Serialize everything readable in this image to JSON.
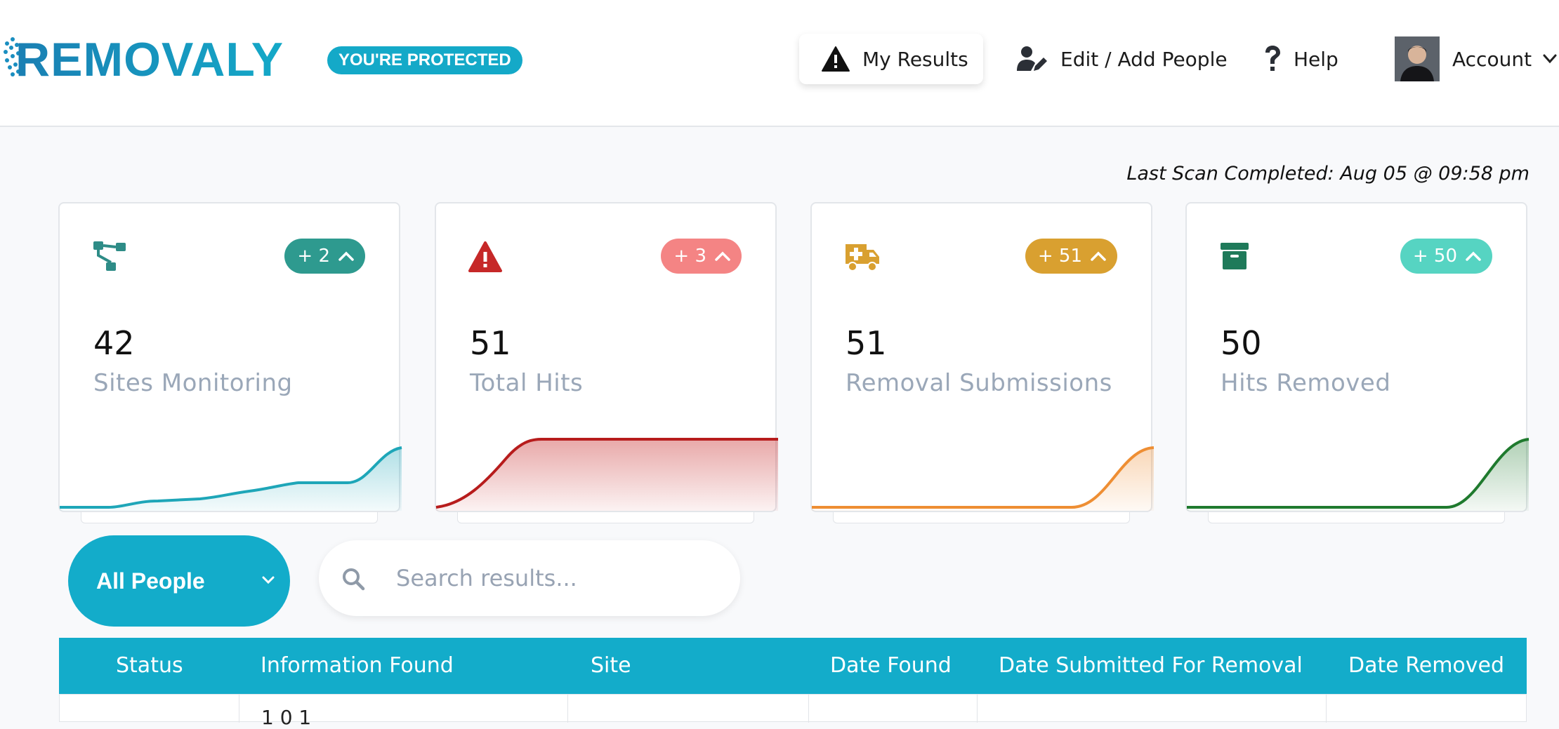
{
  "header": {
    "logo_text": "REMOVALY",
    "badge": "YOU'RE PROTECTED",
    "nav": [
      {
        "label": "My Results",
        "icon": "warning-icon",
        "active": true
      },
      {
        "label": "Edit / Add People",
        "icon": "user-edit-icon"
      },
      {
        "label": "Help",
        "icon": "question-icon"
      },
      {
        "label": "Account",
        "icon": "avatar"
      }
    ]
  },
  "last_scan": "Last Scan Completed: Aug 05 @ 09:58 pm",
  "cards": [
    {
      "icon": "sitemap-icon",
      "change": "+ 2",
      "value": "42",
      "label": "Sites Monitoring",
      "color": "#2e9a8f",
      "line": "#1ea6b8"
    },
    {
      "icon": "alert-triangle-icon",
      "change": "+ 3",
      "value": "51",
      "label": "Total Hits",
      "color": "#f48484",
      "line": "#b71c1c"
    },
    {
      "icon": "ambulance-icon",
      "change": "+ 51",
      "value": "51",
      "label": "Removal Submissions",
      "color": "#d9a030",
      "line": "#ee8e33"
    },
    {
      "icon": "archive-icon",
      "change": "+ 50",
      "value": "50",
      "label": "Hits Removed",
      "color": "#56d4c2",
      "line": "#1f7a2e"
    }
  ],
  "filters": {
    "people_select": "All People",
    "search_placeholder": "Search results..."
  },
  "table": {
    "columns": [
      "Status",
      "Information Found",
      "Site",
      "Date Found",
      "Date Submitted For Removal",
      "Date Removed"
    ],
    "first_row_partial": "1 0 1"
  },
  "colors": {
    "accent": "#13acca",
    "header_bg": "#ffffff",
    "page_bg": "#f8f9fb"
  }
}
